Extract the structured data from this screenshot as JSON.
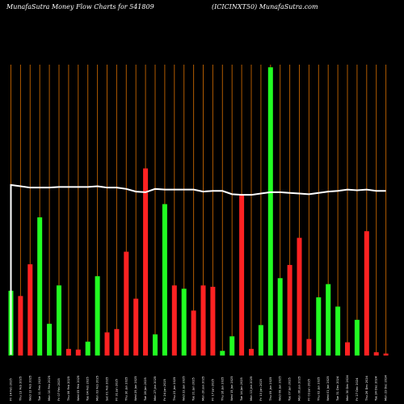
{
  "header": {
    "left": "MunafaSutra  Money Flow  Charts for 541809",
    "right": "(ICICINXT50) MunafaSutra.com"
  },
  "colors": {
    "background": "#000000",
    "up": "#22ff22",
    "down": "#ff2222",
    "grid": "#b05a00",
    "line": "#ffffff",
    "label": "#ffffff"
  },
  "chart_data": {
    "type": "bar",
    "grid": true,
    "categories": [
      "Fri 14 Feb 2025",
      "Thu 13 Feb 2025",
      "Wed 12 Feb 2025",
      "Tue 11 Feb 2025",
      "Mon 10 Feb 2025",
      "Fri 07 Feb 2025",
      "Thu 06 Feb 2025",
      "Wed 05 Feb 2025",
      "Tue 04 Feb 2025",
      "Mon 03 Feb 2025",
      "Sat 01 Feb 2025",
      "Fri 31 Jan 2025",
      "Thu 30 Jan 2025",
      "Wed 29 Jan 2025",
      "Tue 28 Jan 2025",
      "Mon 27 Jan 2025",
      "Fri 24 Jan 2025",
      "Thu 23 Jan 2025",
      "Wed 22 Jan 2025",
      "Tue 21 Jan 2025",
      "Mon 20 Jan 2025",
      "Fri 17 Jan 2025",
      "Thu 16 Jan 2025",
      "Wed 15 Jan 2025",
      "Tue 14 Jan 2025",
      "Mon 13 Jan 2025",
      "Fri 10 Jan 2025",
      "Thu 09 Jan 2025",
      "Wed 08 Jan 2025",
      "Tue 07 Jan 2025",
      "Mon 06 Jan 2025",
      "Fri 03 Jan 2025",
      "Thu 02 Jan 2025",
      "Wed 01 Jan 2025",
      "Tue 31 Dec 2024",
      "Mon 30 Dec 2024",
      "Fri 27 Dec 2024",
      "Thu 26 Dec 2024",
      "Tue 24 Dec 2024",
      "Mon 23 Dec 2024"
    ],
    "values": [
      98,
      90,
      138,
      209,
      48,
      106,
      10,
      9,
      21,
      120,
      35,
      40,
      157,
      86,
      283,
      32,
      229,
      106,
      101,
      68,
      106,
      104,
      7,
      29,
      242,
      10,
      46,
      436,
      117,
      137,
      178,
      25,
      88,
      108,
      74,
      20,
      54,
      188,
      5,
      0
    ],
    "direction": [
      "up",
      "down",
      "down",
      "up",
      "up",
      "up",
      "down",
      "down",
      "up",
      "up",
      "down",
      "down",
      "down",
      "down",
      "down",
      "up",
      "up",
      "down",
      "up",
      "down",
      "down",
      "down",
      "up",
      "up",
      "down",
      "down",
      "up",
      "up",
      "up",
      "down",
      "down",
      "down",
      "up",
      "up",
      "up",
      "down",
      "up",
      "down",
      "down",
      "down"
    ],
    "line_values": [
      258,
      256,
      254,
      254,
      254,
      255,
      255,
      255,
      255,
      256,
      254,
      254,
      252,
      248,
      247,
      252,
      251,
      251,
      251,
      251,
      248,
      249,
      249,
      244,
      243,
      243,
      245,
      247,
      247,
      246,
      245,
      244,
      246,
      248,
      249,
      251,
      250,
      251,
      249,
      249
    ],
    "ylim": [
      0,
      440
    ]
  }
}
